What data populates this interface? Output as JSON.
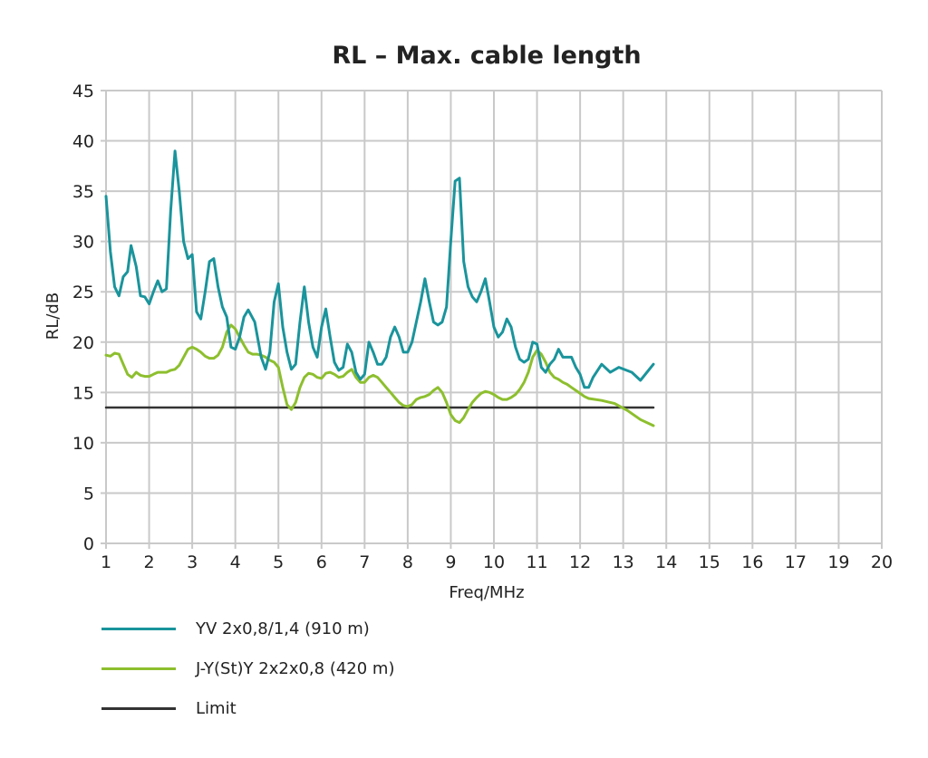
{
  "chart_data": {
    "type": "line",
    "title": "RL – Max. cable length",
    "xlabel": "Freq/MHz",
    "ylabel": "RL/dB",
    "ylim": [
      0,
      45
    ],
    "yticks": [
      "0",
      "5",
      "10",
      "15",
      "20",
      "25",
      "30",
      "35",
      "40",
      "45"
    ],
    "xticks": [
      "1",
      "2",
      "3",
      "4",
      "5",
      "6",
      "7",
      "8",
      "9",
      "10",
      "11",
      "12",
      "13",
      "14",
      "15",
      "16",
      "17",
      "19",
      "20"
    ],
    "grid": true,
    "legend_position": "bottom-left",
    "series": [
      {
        "name": "YV 2x0,8/1,4 (910 m)",
        "color": "#1a949c",
        "points": [
          [
            1.0,
            34.5
          ],
          [
            1.1,
            29.0
          ],
          [
            1.2,
            25.5
          ],
          [
            1.3,
            24.6
          ],
          [
            1.4,
            26.5
          ],
          [
            1.5,
            27.0
          ],
          [
            1.58,
            29.6
          ],
          [
            1.7,
            27.5
          ],
          [
            1.8,
            24.6
          ],
          [
            1.9,
            24.5
          ],
          [
            2.0,
            23.8
          ],
          [
            2.1,
            25.0
          ],
          [
            2.2,
            26.1
          ],
          [
            2.3,
            25.0
          ],
          [
            2.4,
            25.3
          ],
          [
            2.5,
            33.0
          ],
          [
            2.6,
            39.0
          ],
          [
            2.7,
            35.0
          ],
          [
            2.8,
            30.0
          ],
          [
            2.9,
            28.3
          ],
          [
            3.0,
            28.7
          ],
          [
            3.1,
            23.0
          ],
          [
            3.2,
            22.3
          ],
          [
            3.3,
            25.0
          ],
          [
            3.4,
            28.0
          ],
          [
            3.5,
            28.3
          ],
          [
            3.6,
            25.5
          ],
          [
            3.7,
            23.5
          ],
          [
            3.8,
            22.5
          ],
          [
            3.9,
            19.5
          ],
          [
            4.0,
            19.3
          ],
          [
            4.1,
            20.5
          ],
          [
            4.2,
            22.5
          ],
          [
            4.3,
            23.2
          ],
          [
            4.45,
            22.0
          ],
          [
            4.6,
            18.5
          ],
          [
            4.7,
            17.3
          ],
          [
            4.8,
            19.0
          ],
          [
            4.9,
            24.0
          ],
          [
            5.0,
            25.8
          ],
          [
            5.1,
            21.5
          ],
          [
            5.2,
            19.0
          ],
          [
            5.3,
            17.3
          ],
          [
            5.4,
            17.8
          ],
          [
            5.5,
            22.0
          ],
          [
            5.6,
            25.5
          ],
          [
            5.7,
            22.0
          ],
          [
            5.8,
            19.5
          ],
          [
            5.9,
            18.5
          ],
          [
            6.0,
            21.5
          ],
          [
            6.1,
            23.3
          ],
          [
            6.2,
            20.5
          ],
          [
            6.3,
            18.0
          ],
          [
            6.4,
            17.2
          ],
          [
            6.5,
            17.5
          ],
          [
            6.6,
            19.8
          ],
          [
            6.7,
            19.0
          ],
          [
            6.8,
            17.0
          ],
          [
            6.9,
            16.3
          ],
          [
            7.0,
            16.8
          ],
          [
            7.1,
            20.0
          ],
          [
            7.2,
            19.0
          ],
          [
            7.3,
            17.8
          ],
          [
            7.4,
            17.8
          ],
          [
            7.5,
            18.5
          ],
          [
            7.6,
            20.5
          ],
          [
            7.7,
            21.5
          ],
          [
            7.8,
            20.5
          ],
          [
            7.9,
            19.0
          ],
          [
            8.0,
            19.0
          ],
          [
            8.1,
            20.0
          ],
          [
            8.2,
            22.0
          ],
          [
            8.3,
            24.0
          ],
          [
            8.4,
            26.3
          ],
          [
            8.5,
            24.0
          ],
          [
            8.6,
            22.0
          ],
          [
            8.7,
            21.7
          ],
          [
            8.8,
            22.0
          ],
          [
            8.9,
            23.5
          ],
          [
            9.0,
            30.0
          ],
          [
            9.1,
            36.0
          ],
          [
            9.2,
            36.3
          ],
          [
            9.3,
            28.0
          ],
          [
            9.4,
            25.5
          ],
          [
            9.5,
            24.5
          ],
          [
            9.6,
            24.0
          ],
          [
            9.7,
            25.0
          ],
          [
            9.8,
            26.3
          ],
          [
            9.9,
            24.0
          ],
          [
            10.0,
            21.5
          ],
          [
            10.1,
            20.5
          ],
          [
            10.2,
            21.0
          ],
          [
            10.3,
            22.3
          ],
          [
            10.4,
            21.5
          ],
          [
            10.5,
            19.5
          ],
          [
            10.6,
            18.3
          ],
          [
            10.7,
            18.0
          ],
          [
            10.8,
            18.3
          ],
          [
            10.9,
            20.0
          ],
          [
            11.0,
            19.8
          ],
          [
            11.1,
            17.5
          ],
          [
            11.2,
            17.0
          ],
          [
            11.3,
            17.8
          ],
          [
            11.4,
            18.3
          ],
          [
            11.5,
            19.3
          ],
          [
            11.6,
            18.5
          ],
          [
            11.7,
            18.5
          ],
          [
            11.8,
            18.5
          ],
          [
            11.9,
            17.5
          ],
          [
            12.0,
            16.8
          ],
          [
            12.1,
            15.5
          ],
          [
            12.2,
            15.5
          ],
          [
            12.3,
            16.5
          ],
          [
            12.5,
            17.8
          ],
          [
            12.7,
            17.0
          ],
          [
            12.9,
            17.5
          ],
          [
            13.2,
            17.0
          ],
          [
            13.4,
            16.2
          ],
          [
            13.7,
            17.8
          ]
        ]
      },
      {
        "name": "J-Y(St)Y 2x2x0,8 (420 m)",
        "color": "#8dbf2e",
        "points": [
          [
            1.0,
            18.7
          ],
          [
            1.1,
            18.6
          ],
          [
            1.2,
            18.9
          ],
          [
            1.3,
            18.8
          ],
          [
            1.4,
            17.8
          ],
          [
            1.5,
            16.8
          ],
          [
            1.6,
            16.5
          ],
          [
            1.7,
            17.0
          ],
          [
            1.8,
            16.7
          ],
          [
            1.9,
            16.6
          ],
          [
            2.0,
            16.6
          ],
          [
            2.1,
            16.8
          ],
          [
            2.2,
            17.0
          ],
          [
            2.3,
            17.0
          ],
          [
            2.4,
            17.0
          ],
          [
            2.5,
            17.2
          ],
          [
            2.6,
            17.3
          ],
          [
            2.7,
            17.7
          ],
          [
            2.8,
            18.5
          ],
          [
            2.9,
            19.3
          ],
          [
            3.0,
            19.5
          ],
          [
            3.1,
            19.3
          ],
          [
            3.2,
            19.0
          ],
          [
            3.3,
            18.6
          ],
          [
            3.4,
            18.4
          ],
          [
            3.5,
            18.4
          ],
          [
            3.6,
            18.7
          ],
          [
            3.7,
            19.5
          ],
          [
            3.8,
            21.0
          ],
          [
            3.9,
            21.7
          ],
          [
            4.0,
            21.3
          ],
          [
            4.1,
            20.5
          ],
          [
            4.2,
            19.7
          ],
          [
            4.3,
            19.0
          ],
          [
            4.4,
            18.8
          ],
          [
            4.5,
            18.8
          ],
          [
            4.6,
            18.7
          ],
          [
            4.7,
            18.5
          ],
          [
            4.8,
            18.2
          ],
          [
            4.9,
            18.0
          ],
          [
            5.0,
            17.5
          ],
          [
            5.1,
            15.5
          ],
          [
            5.2,
            13.8
          ],
          [
            5.3,
            13.3
          ],
          [
            5.4,
            14.0
          ],
          [
            5.5,
            15.5
          ],
          [
            5.6,
            16.5
          ],
          [
            5.7,
            16.9
          ],
          [
            5.8,
            16.8
          ],
          [
            5.9,
            16.5
          ],
          [
            6.0,
            16.4
          ],
          [
            6.1,
            16.9
          ],
          [
            6.2,
            17.0
          ],
          [
            6.3,
            16.8
          ],
          [
            6.4,
            16.5
          ],
          [
            6.5,
            16.6
          ],
          [
            6.6,
            17.0
          ],
          [
            6.7,
            17.3
          ],
          [
            6.8,
            16.5
          ],
          [
            6.9,
            16.0
          ],
          [
            7.0,
            16.0
          ],
          [
            7.1,
            16.5
          ],
          [
            7.2,
            16.7
          ],
          [
            7.3,
            16.5
          ],
          [
            7.4,
            16.0
          ],
          [
            7.5,
            15.5
          ],
          [
            7.6,
            15.0
          ],
          [
            7.7,
            14.5
          ],
          [
            7.8,
            14.0
          ],
          [
            7.9,
            13.7
          ],
          [
            8.0,
            13.6
          ],
          [
            8.1,
            13.8
          ],
          [
            8.2,
            14.3
          ],
          [
            8.3,
            14.5
          ],
          [
            8.4,
            14.6
          ],
          [
            8.5,
            14.8
          ],
          [
            8.6,
            15.2
          ],
          [
            8.7,
            15.5
          ],
          [
            8.8,
            15.0
          ],
          [
            8.9,
            14.0
          ],
          [
            9.0,
            12.8
          ],
          [
            9.1,
            12.2
          ],
          [
            9.2,
            12.0
          ],
          [
            9.3,
            12.5
          ],
          [
            9.4,
            13.3
          ],
          [
            9.5,
            14.0
          ],
          [
            9.6,
            14.5
          ],
          [
            9.7,
            14.9
          ],
          [
            9.8,
            15.1
          ],
          [
            9.9,
            15.0
          ],
          [
            10.0,
            14.8
          ],
          [
            10.1,
            14.5
          ],
          [
            10.2,
            14.3
          ],
          [
            10.3,
            14.3
          ],
          [
            10.4,
            14.5
          ],
          [
            10.5,
            14.8
          ],
          [
            10.6,
            15.3
          ],
          [
            10.7,
            16.0
          ],
          [
            10.8,
            17.0
          ],
          [
            10.9,
            18.5
          ],
          [
            11.0,
            19.2
          ],
          [
            11.1,
            18.8
          ],
          [
            11.2,
            18.0
          ],
          [
            11.3,
            17.0
          ],
          [
            11.4,
            16.5
          ],
          [
            11.5,
            16.3
          ],
          [
            11.6,
            16.0
          ],
          [
            11.7,
            15.8
          ],
          [
            11.8,
            15.5
          ],
          [
            11.9,
            15.2
          ],
          [
            12.0,
            14.9
          ],
          [
            12.1,
            14.6
          ],
          [
            12.2,
            14.4
          ],
          [
            12.5,
            14.2
          ],
          [
            12.8,
            13.9
          ],
          [
            13.1,
            13.2
          ],
          [
            13.4,
            12.3
          ],
          [
            13.7,
            11.7
          ]
        ]
      },
      {
        "name": "Limit",
        "color": "#333333",
        "points": [
          [
            1.0,
            13.5
          ],
          [
            13.7,
            13.5
          ]
        ]
      }
    ]
  }
}
